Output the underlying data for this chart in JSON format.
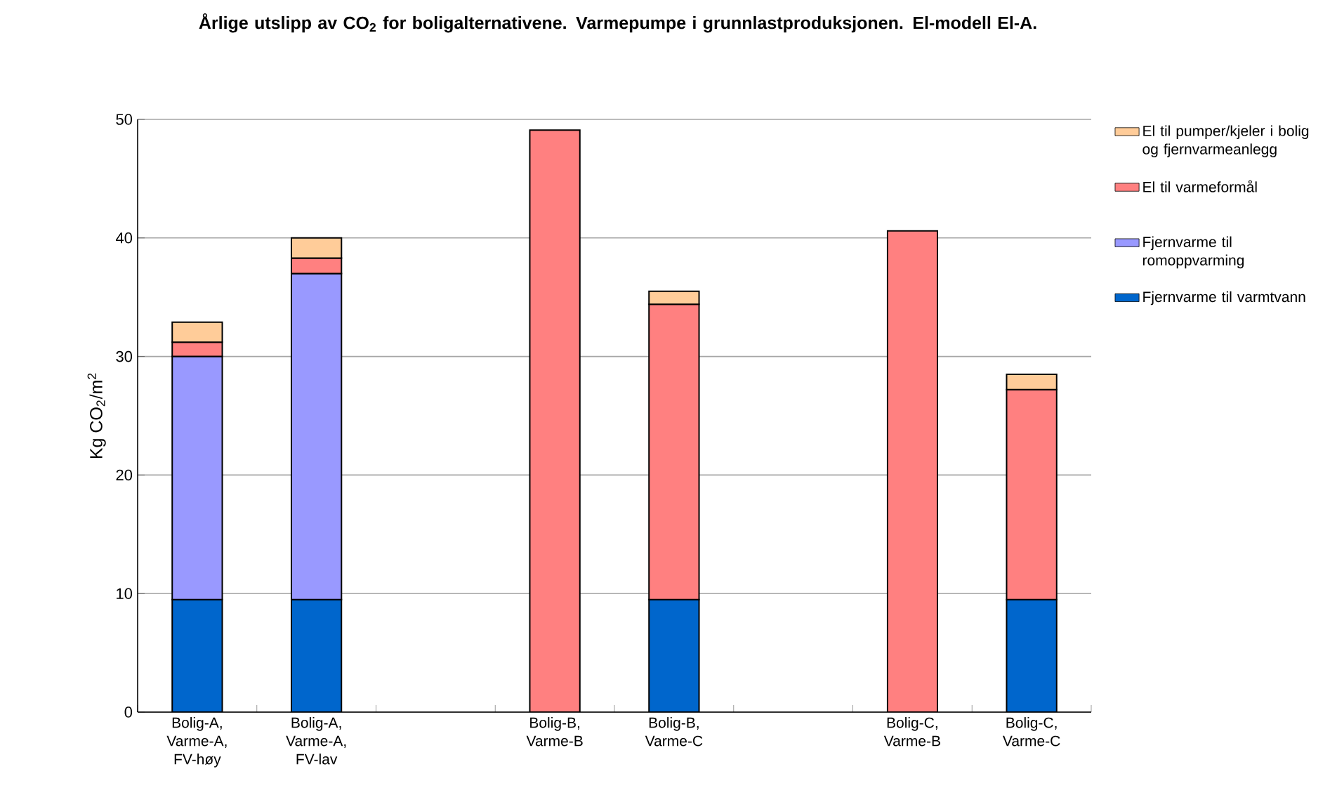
{
  "chart_data": {
    "type": "bar",
    "stacked": true,
    "title": "Årlige utslipp av CO$_{2}$ for boligalternativene. Varmepumpe i grunnlastproduksjonen. El-modell El-A.",
    "ylabel": "Kg CO$_{2}$/m$^{2}$",
    "categories": [
      "Bolig-A, Varme-A, FV-høy",
      "Bolig-A, Varme-A, FV-lav",
      null,
      "Bolig-B, Varme-B",
      "Bolig-B, Varme-C",
      null,
      "Bolig-C, Varme-B",
      "Bolig-C, Varme-C"
    ],
    "series": [
      {
        "name": "Fjernvarme til varmtvann",
        "color": "#0066cc",
        "values": [
          9.5,
          9.5,
          null,
          null,
          9.5,
          null,
          null,
          9.5
        ]
      },
      {
        "name": "Fjernvarme til romoppvarming",
        "color": "#9999ff",
        "values": [
          20.5,
          27.5,
          null,
          null,
          null,
          null,
          null,
          null
        ]
      },
      {
        "name": "El til varmeformål",
        "color": "#ff8080",
        "values": [
          1.2,
          1.3,
          null,
          49.1,
          24.9,
          null,
          40.6,
          17.7
        ]
      },
      {
        "name": "El til pumper/kjeler i bolig og fjernvarmeanlegg",
        "color": "#ffcc99",
        "values": [
          1.7,
          1.7,
          null,
          null,
          1.1,
          null,
          null,
          1.3
        ]
      }
    ],
    "ylim": [
      0,
      50
    ],
    "yticks": [
      0,
      10,
      20,
      30,
      40,
      50
    ],
    "grid": "y",
    "legend": "right"
  }
}
